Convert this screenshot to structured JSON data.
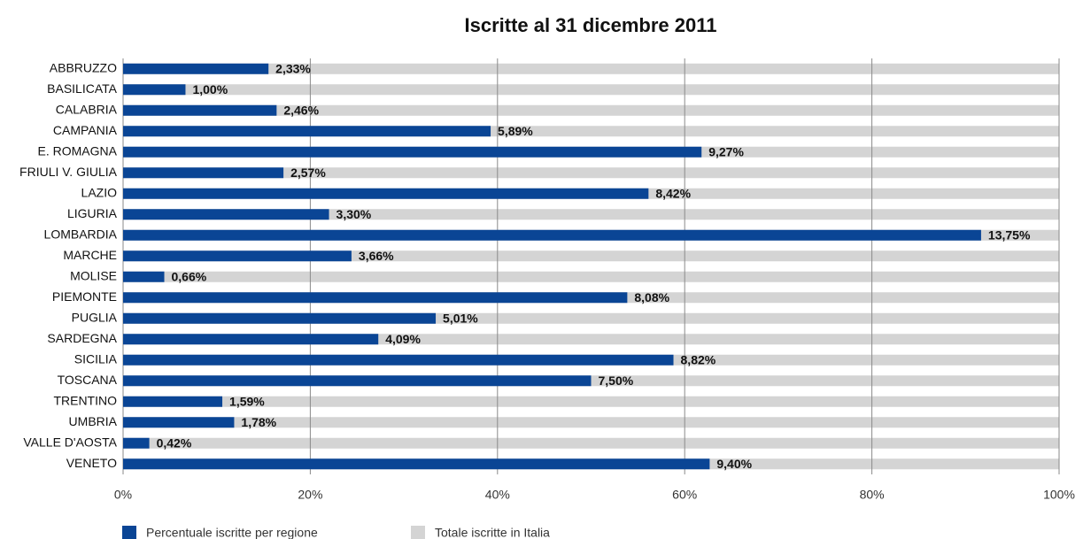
{
  "chart_data": {
    "type": "hbar",
    "title": "Iscritte al 31 dicembre 2011",
    "categories": [
      "ABBRUZZO",
      "BASILICATA",
      "CALABRIA",
      "CAMPANIA",
      "E. ROMAGNA",
      "FRIULI V. GIULIA",
      "LAZIO",
      "LIGURIA",
      "LOMBARDIA",
      "MARCHE",
      "MOLISE",
      "PIEMONTE",
      "PUGLIA",
      "SARDEGNA",
      "SICILIA",
      "TOSCANA",
      "TRENTINO",
      "UMBRIA",
      "VALLE D'AOSTA",
      "VENETO"
    ],
    "series": [
      {
        "name": "Percentuale iscritte per regione",
        "color": "#0a4595",
        "values": [
          2.33,
          1.0,
          2.46,
          5.89,
          9.27,
          2.57,
          8.42,
          3.3,
          13.75,
          3.66,
          0.66,
          8.08,
          5.01,
          4.09,
          8.82,
          7.5,
          1.59,
          1.78,
          0.42,
          9.4
        ],
        "value_labels": [
          "2,33%",
          "1,00%",
          "2,46%",
          "5,89%",
          "9,27%",
          "2,57%",
          "8,42%",
          "3,30%",
          "13,75%",
          "3,66%",
          "0,66%",
          "8,08%",
          "5,01%",
          "4,09%",
          "8,82%",
          "7,50%",
          "1,59%",
          "1,78%",
          "0,42%",
          "9,40%"
        ]
      },
      {
        "name": "Totale iscritte in Italia",
        "color": "#d4d4d4",
        "values": [
          15,
          15,
          15,
          15,
          15,
          15,
          15,
          15,
          15,
          15,
          15,
          15,
          15,
          15,
          15,
          15,
          15,
          15,
          15,
          15
        ]
      }
    ],
    "xlim": [
      0,
      15
    ],
    "xticks": [
      {
        "value": 0,
        "label": "0%"
      },
      {
        "value": 3,
        "label": "20%"
      },
      {
        "value": 6,
        "label": "40%"
      },
      {
        "value": 9,
        "label": "60%"
      },
      {
        "value": 12,
        "label": "80%"
      },
      {
        "value": 15,
        "label": "100%"
      }
    ],
    "grid": true,
    "legend": "bottom"
  }
}
